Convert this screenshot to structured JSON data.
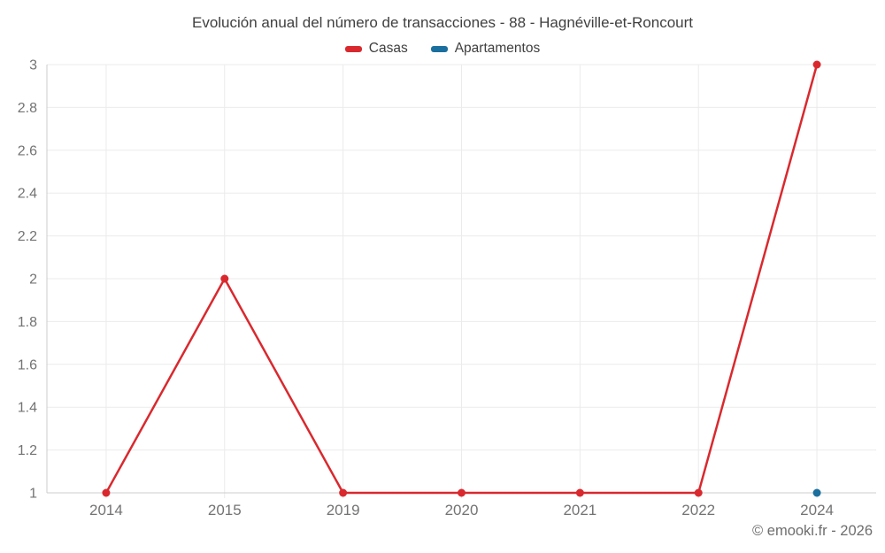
{
  "chart_data": {
    "type": "line",
    "title": "Evolución anual del número de transacciones - 88 - Hagnéville-et-Roncourt",
    "categories": [
      "2014",
      "2015",
      "2019",
      "2020",
      "2021",
      "2022",
      "2024"
    ],
    "series": [
      {
        "name": "Casas",
        "color": "#d9292e",
        "values": [
          1,
          2,
          1,
          1,
          1,
          1,
          3
        ]
      },
      {
        "name": "Apartamentos",
        "color": "#1a6f9e",
        "values": [
          null,
          null,
          null,
          null,
          null,
          null,
          1
        ]
      }
    ],
    "ylim": [
      1,
      3
    ],
    "ytick_step": 0.2,
    "ytick_labels": [
      "1",
      "1.2",
      "1.4",
      "1.6",
      "1.8",
      "2",
      "2.2",
      "2.4",
      "2.6",
      "2.8",
      "3"
    ],
    "xlabel": "",
    "ylabel": "",
    "grid": true,
    "legend_position": "top",
    "grid_color": "#ebebeb",
    "axis_color": "#cccccc",
    "tick_label_color": "#737373",
    "title_color": "#404040"
  },
  "footer": {
    "credit": "© emooki.fr - 2026"
  }
}
